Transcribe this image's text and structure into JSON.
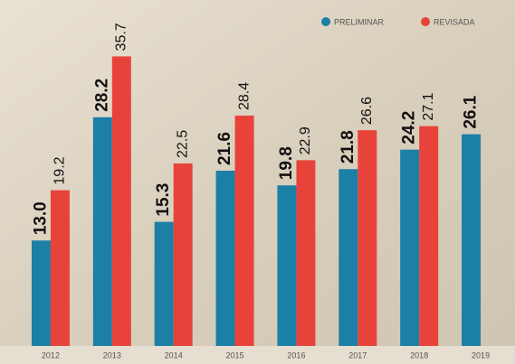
{
  "chart_data": {
    "type": "bar",
    "categories": [
      "2012",
      "2013",
      "2014",
      "2015",
      "2016",
      "2017",
      "2018",
      "2019"
    ],
    "series": [
      {
        "name": "PRELIMINAR",
        "color": "#1b7fa6",
        "values": [
          13.0,
          28.2,
          15.3,
          21.6,
          19.8,
          21.8,
          24.2,
          26.1
        ],
        "value_labels": [
          "13.0",
          "28.2",
          "15.3",
          "21.6",
          "19.8",
          "21.8",
          "24.2",
          "26.1"
        ]
      },
      {
        "name": "REVISADA",
        "color": "#e8433a",
        "values": [
          19.2,
          35.7,
          22.5,
          28.4,
          22.9,
          26.6,
          27.1,
          null
        ]
      }
    ]
  }
}
